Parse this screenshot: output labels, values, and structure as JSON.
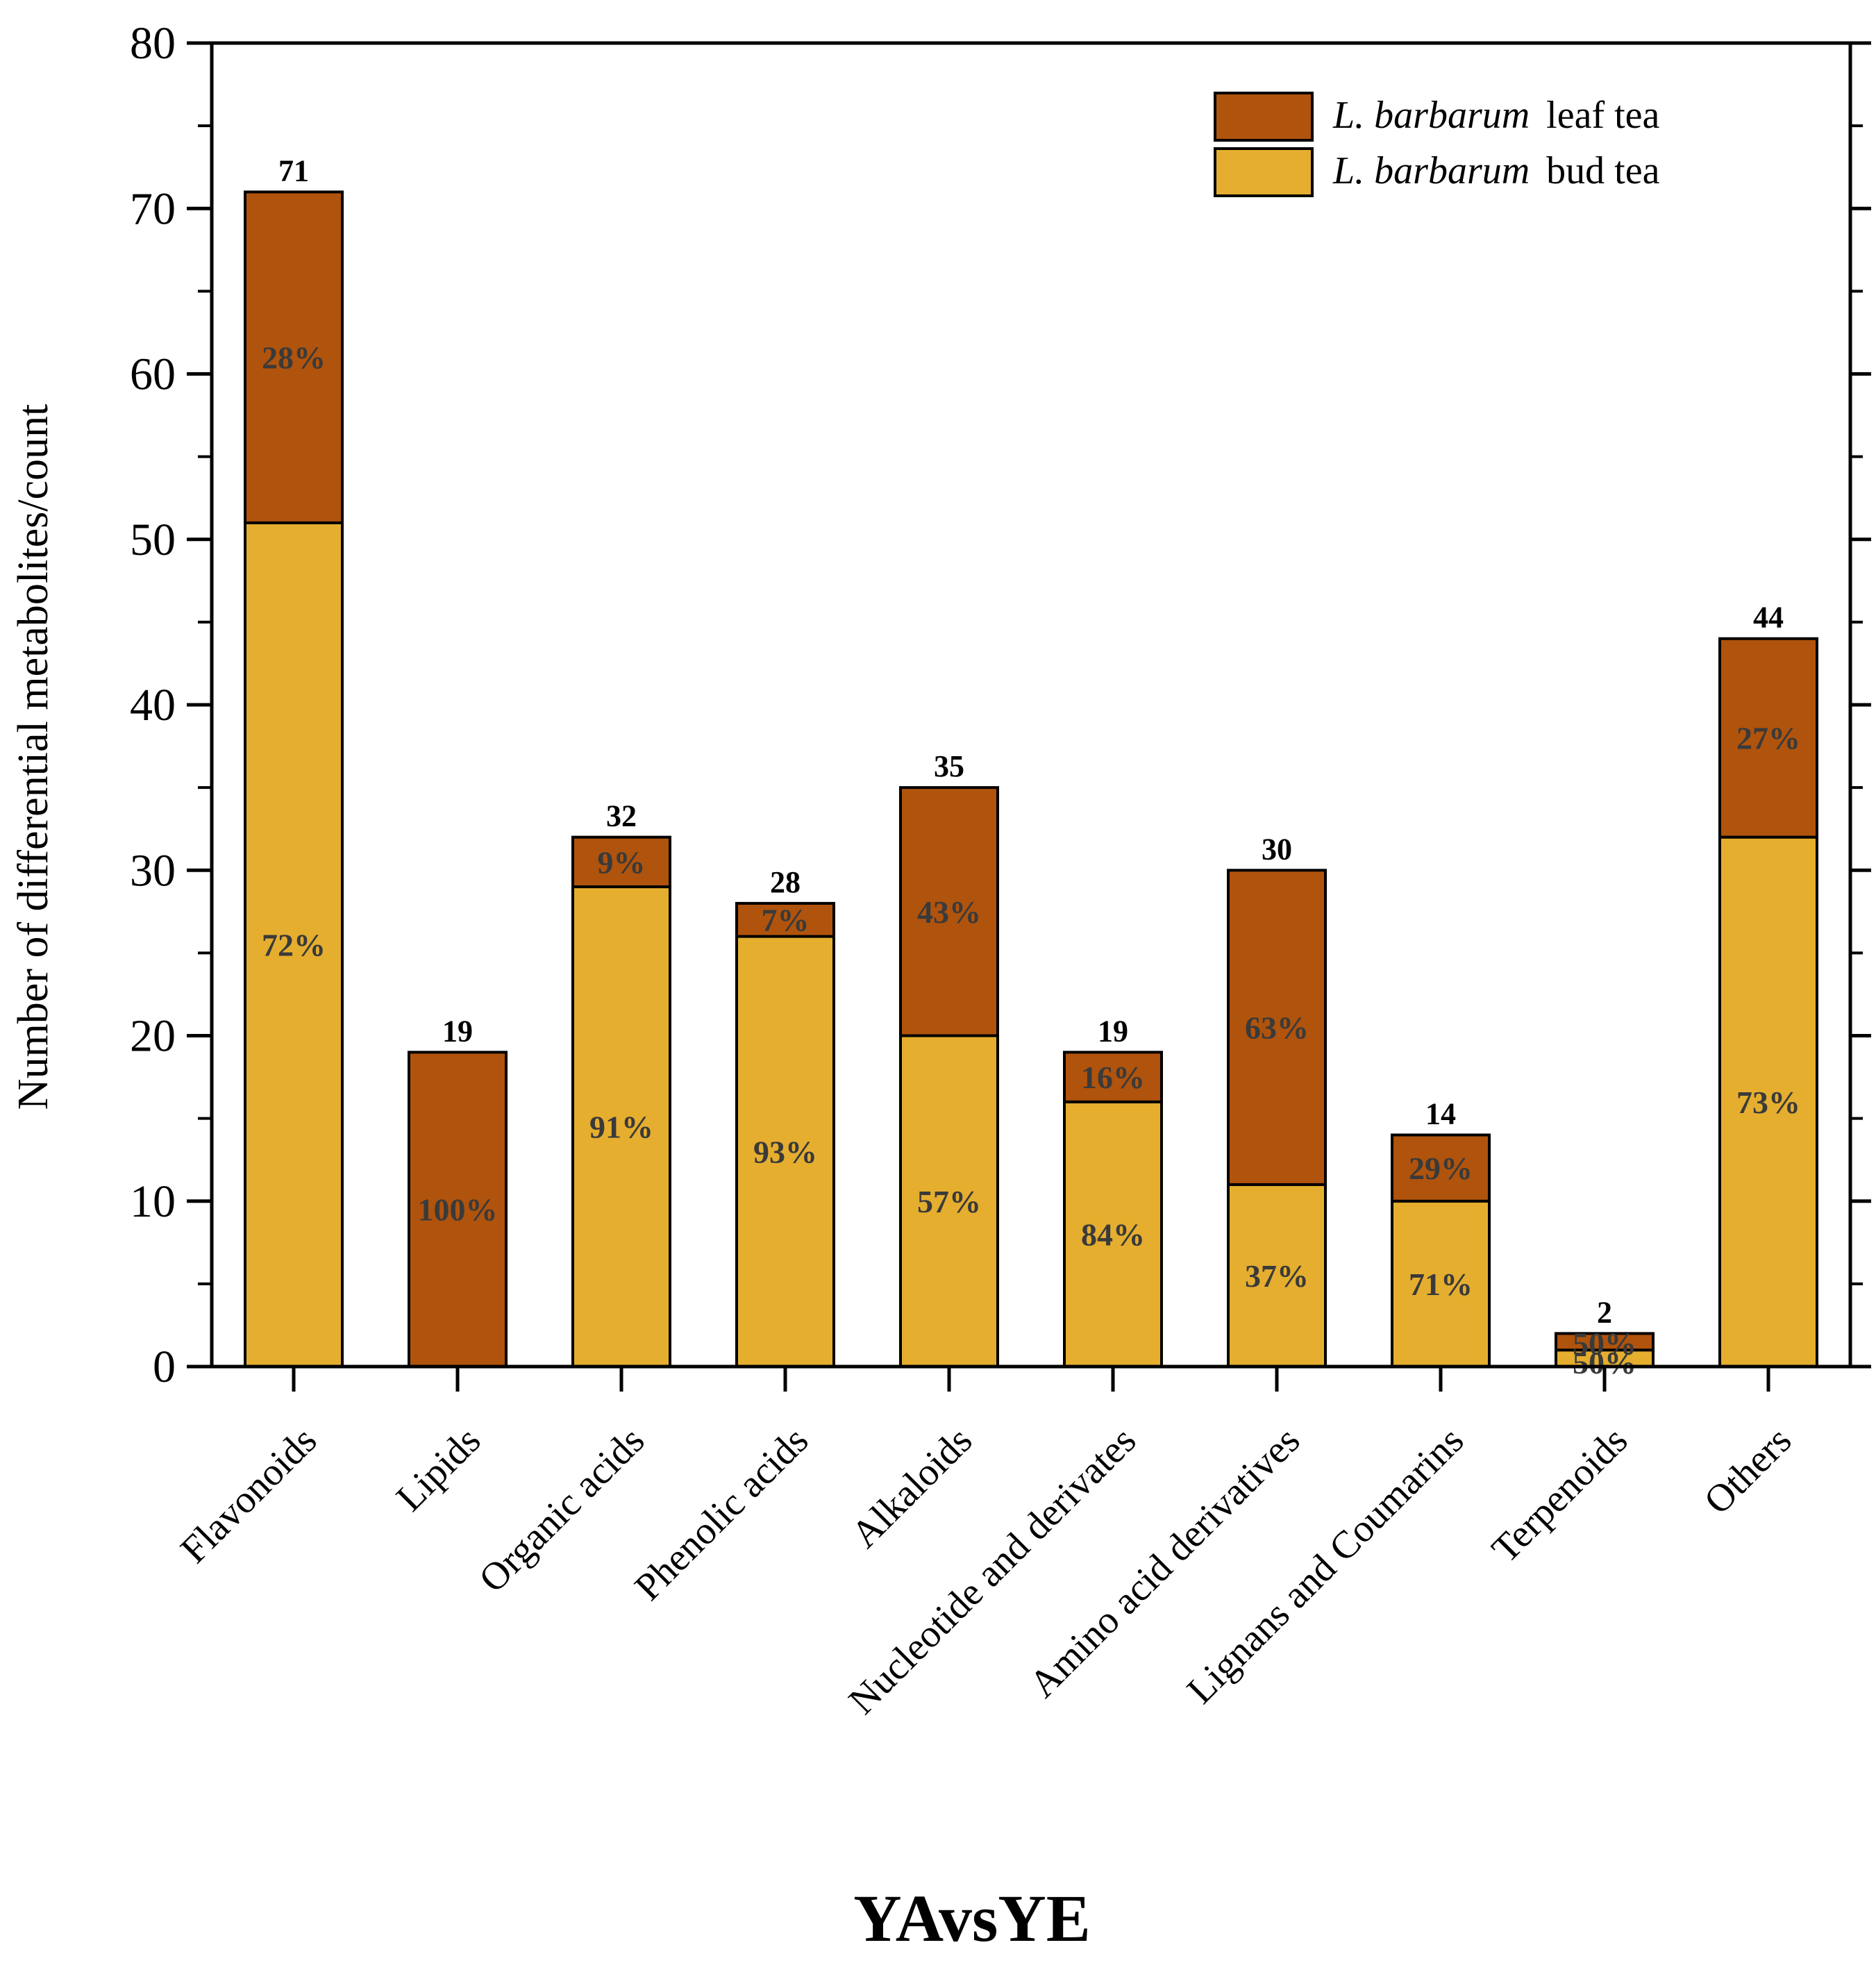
{
  "colors": {
    "leaf": "#B0530C",
    "bud": "#E5AE2F",
    "pct_text": "#3A3A3A",
    "axis": "#000000"
  },
  "chart_data": {
    "type": "bar",
    "stacked": true,
    "title": "YAvsYE",
    "xlabel": "YAvsYE",
    "ylabel": "Number of differential metabolites/count",
    "ylim": [
      0,
      80
    ],
    "yticks": [
      0,
      10,
      20,
      30,
      40,
      50,
      60,
      70,
      80
    ],
    "categories": [
      "Flavonoids",
      "Lipids",
      "Organic acids",
      "Phenolic acids",
      "Alkaloids",
      "Nucleotide and derivates",
      "Amino acid derivatives",
      "Lignans and Coumarins",
      "Terpenoids",
      "Others"
    ],
    "series": [
      {
        "name": "bud tea",
        "legend_species": "L. barbarum",
        "legend_suffix": "bud tea",
        "values": [
          51,
          0,
          29,
          26,
          20,
          16,
          11,
          10,
          1,
          32
        ],
        "percent_labels": [
          "72%",
          "",
          "91%",
          "93%",
          "57%",
          "84%",
          "37%",
          "71%",
          "50%",
          "73%"
        ]
      },
      {
        "name": "leaf tea",
        "legend_species": "L. barbarum",
        "legend_suffix": "leaf tea",
        "values": [
          20,
          19,
          3,
          2,
          15,
          3,
          19,
          4,
          1,
          12
        ],
        "percent_labels": [
          "28%",
          "100%",
          "9%",
          "7%",
          "43%",
          "16%",
          "63%",
          "29%",
          "50%",
          "27%"
        ]
      }
    ],
    "totals": [
      71,
      19,
      32,
      28,
      35,
      19,
      30,
      14,
      2,
      44
    ],
    "legend_position": "top-right"
  }
}
